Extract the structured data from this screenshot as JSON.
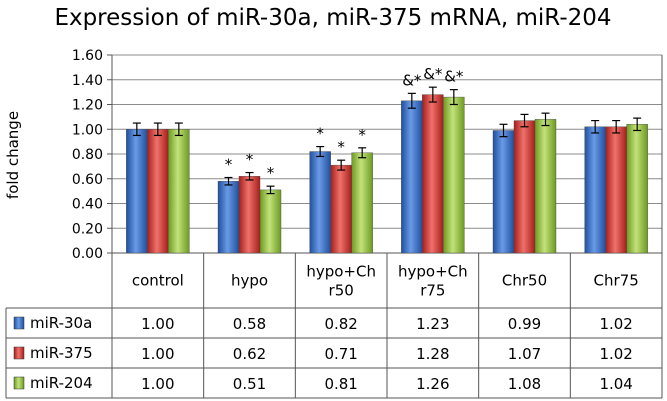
{
  "chart_data": {
    "type": "bar",
    "title": "Expression of miR-30a, miR-375 mRNA, miR-204",
    "ylabel": "fold change",
    "xlabel": "",
    "ylim": [
      0,
      1.6
    ],
    "ytick_step": 0.2,
    "yticks": [
      "0.00",
      "0.20",
      "0.40",
      "0.60",
      "0.80",
      "1.00",
      "1.20",
      "1.40",
      "1.60"
    ],
    "grid": true,
    "legend": "data-table-left",
    "categories": [
      [
        "control"
      ],
      [
        "hypo"
      ],
      [
        "hypo+Ch",
        "r50"
      ],
      [
        "hypo+Ch",
        "r75"
      ],
      [
        "Chr50"
      ],
      [
        "Chr75"
      ]
    ],
    "series": [
      {
        "name": "miR-30a",
        "color": "#3a6fc4",
        "values": [
          1.0,
          0.58,
          0.82,
          1.23,
          0.99,
          1.02
        ],
        "labels": [
          "1.00",
          "0.58",
          "0.82",
          "1.23",
          "0.99",
          "1.02"
        ],
        "errors": [
          0.05,
          0.03,
          0.04,
          0.06,
          0.05,
          0.05
        ],
        "marks": [
          "",
          "*",
          "*",
          "&*",
          "",
          ""
        ]
      },
      {
        "name": "miR-375",
        "color": "#d63b35",
        "values": [
          1.0,
          0.62,
          0.71,
          1.28,
          1.07,
          1.02
        ],
        "labels": [
          "1.00",
          "0.62",
          "0.71",
          "1.28",
          "1.07",
          "1.02"
        ],
        "errors": [
          0.05,
          0.03,
          0.04,
          0.06,
          0.05,
          0.05
        ],
        "marks": [
          "",
          "*",
          "*",
          "&*",
          "",
          ""
        ]
      },
      {
        "name": "miR-204",
        "color": "#95c23e",
        "values": [
          1.0,
          0.51,
          0.81,
          1.26,
          1.08,
          1.04
        ],
        "labels": [
          "1.00",
          "0.51",
          "0.81",
          "1.26",
          "1.08",
          "1.04"
        ],
        "errors": [
          0.05,
          0.03,
          0.04,
          0.06,
          0.05,
          0.05
        ],
        "marks": [
          "",
          "*",
          "*",
          "&*",
          "",
          ""
        ]
      }
    ]
  }
}
